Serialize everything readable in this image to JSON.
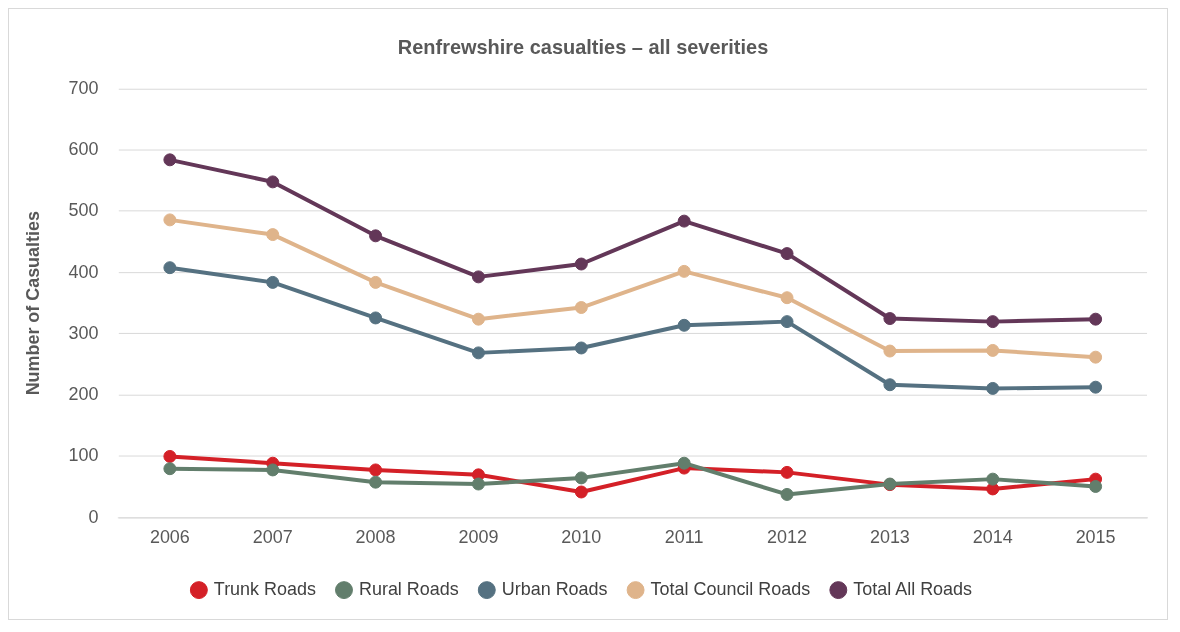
{
  "chart_data": {
    "type": "line",
    "title": "Renfrewshire casualties – all severities",
    "ylabel": "Number of Casualties",
    "categories": [
      "2006",
      "2007",
      "2008",
      "2009",
      "2010",
      "2011",
      "2012",
      "2013",
      "2014",
      "2015"
    ],
    "series": [
      {
        "name": "Trunk Roads",
        "color": "#d42027",
        "values": [
          100,
          89,
          78,
          70,
          42,
          81,
          74,
          54,
          47,
          63
        ]
      },
      {
        "name": "Rural Roads",
        "color": "#627e6c",
        "values": [
          80,
          78,
          58,
          55,
          65,
          89,
          38,
          55,
          63,
          51
        ]
      },
      {
        "name": "Urban Roads",
        "color": "#557181",
        "values": [
          408,
          384,
          326,
          269,
          277,
          314,
          320,
          217,
          211,
          213
        ]
      },
      {
        "name": "Total Council Roads",
        "color": "#dfb48b",
        "values": [
          486,
          462,
          384,
          324,
          343,
          402,
          359,
          272,
          273,
          262
        ]
      },
      {
        "name": "Total All Roads",
        "color": "#633758",
        "values": [
          584,
          548,
          460,
          393,
          414,
          484,
          431,
          325,
          320,
          324
        ]
      }
    ],
    "ylim": [
      0,
      700
    ],
    "yticks": [
      0,
      100,
      200,
      300,
      400,
      500,
      600,
      700
    ],
    "grid": "y",
    "legend": "bottom",
    "marker": "circle",
    "line_style": "solid"
  }
}
